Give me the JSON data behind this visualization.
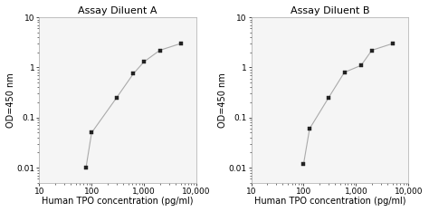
{
  "panel_A": {
    "title": "Assay Diluent A",
    "x": [
      78,
      100,
      300,
      625,
      1000,
      2000,
      5000
    ],
    "y": [
      0.01,
      0.05,
      0.25,
      0.75,
      1.3,
      2.2,
      3.0
    ]
  },
  "panel_B": {
    "title": "Assay Diluent B",
    "x": [
      100,
      130,
      300,
      600,
      1250,
      2000,
      5000
    ],
    "y": [
      0.012,
      0.06,
      0.25,
      0.8,
      1.1,
      2.2,
      3.0
    ]
  },
  "xlabel": "Human TPO concentration (pg/ml)",
  "ylabel": "OD=450 nm",
  "xlim": [
    10,
    10000
  ],
  "ylim": [
    0.005,
    10
  ],
  "line_color": "#aaaaaa",
  "marker_color": "#222222",
  "bg_color": "#f5f5f5",
  "fig_color": "#ffffff",
  "title_fontsize": 8,
  "label_fontsize": 7,
  "tick_fontsize": 6.5
}
